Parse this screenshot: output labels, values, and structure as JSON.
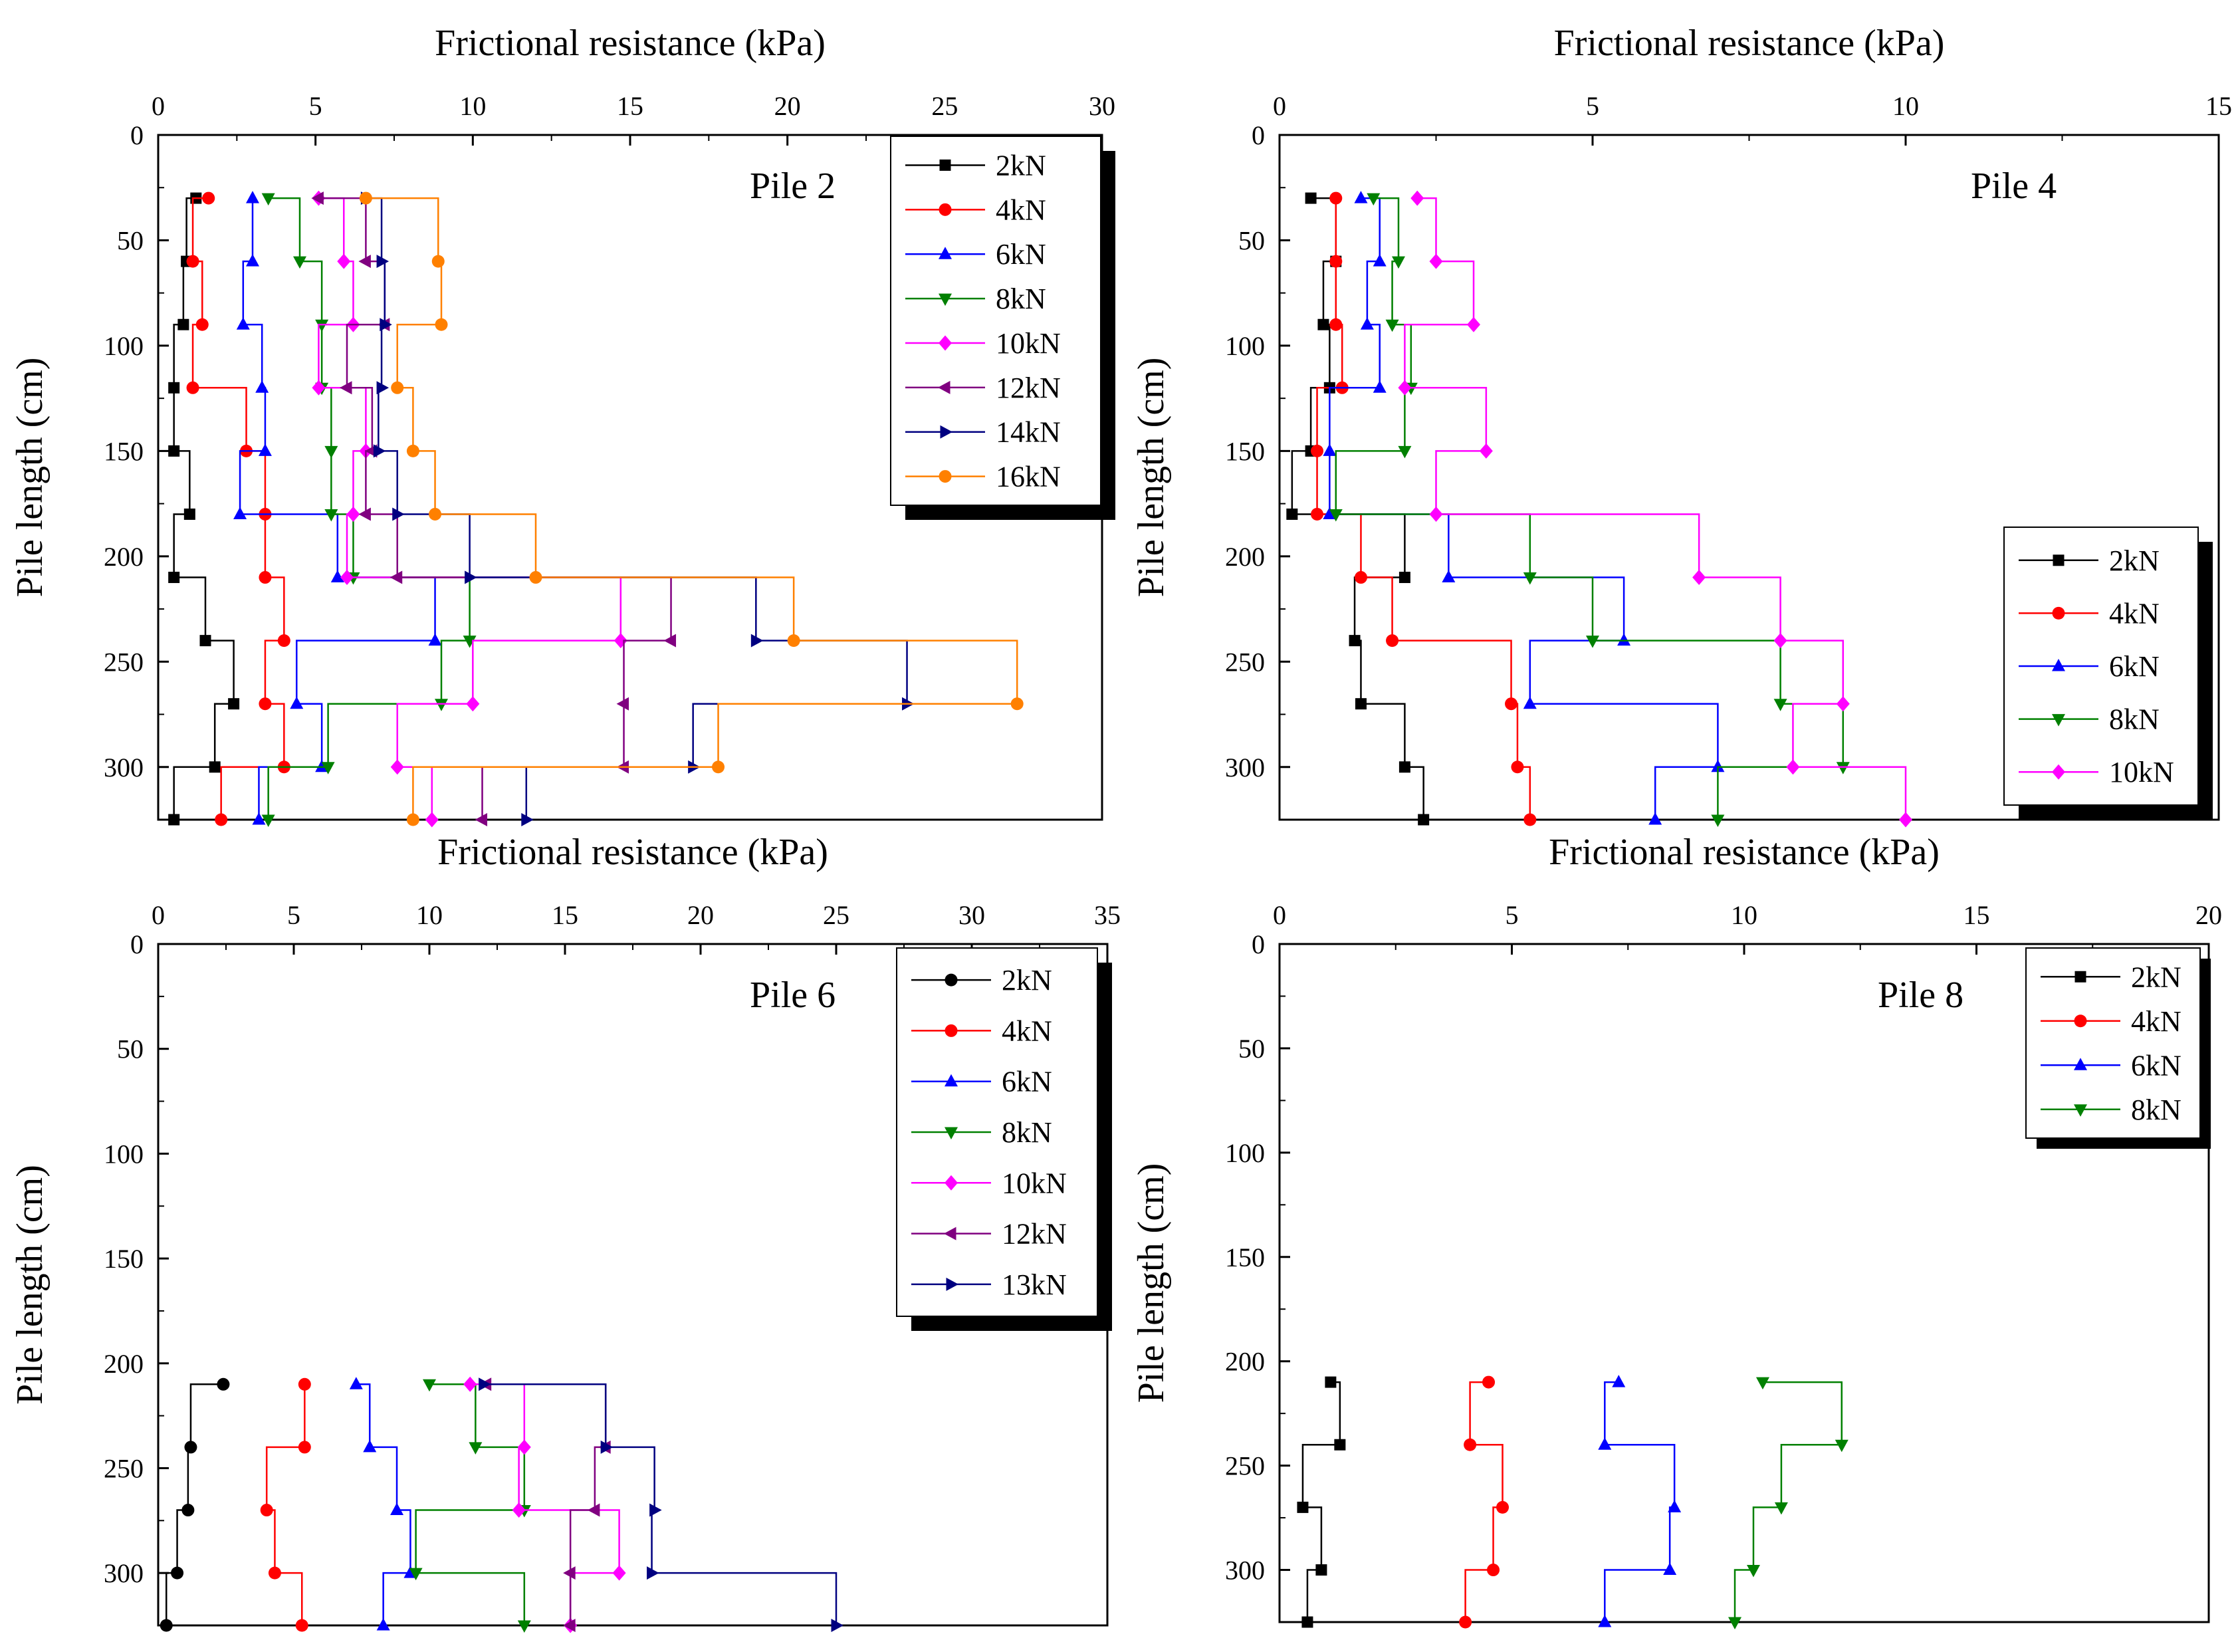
{
  "chart_data": [
    {
      "type": "line",
      "label": "Pile 2",
      "xlabel": "Frictional resistance (kPa)",
      "ylabel": "Pile length (cm)",
      "xlim": [
        0,
        30
      ],
      "ylim": [
        0,
        325
      ],
      "y_inverted": true,
      "x_axis_position": "top",
      "x_ticks": [
        "0",
        "5",
        "10",
        "15",
        "20",
        "25",
        "30"
      ],
      "y_ticks": [
        "0",
        "50",
        "100",
        "150",
        "200",
        "250",
        "300"
      ],
      "legend_position": "top-right",
      "step": "horizontal-first",
      "grid": false,
      "depths": [
        30,
        60,
        90,
        120,
        150,
        180,
        210,
        240,
        270,
        300,
        325
      ],
      "series": [
        {
          "name": "2kN",
          "color": "#000000",
          "marker": "square",
          "values": [
            1.2,
            0.9,
            0.8,
            0.5,
            0.5,
            1.0,
            0.5,
            1.5,
            2.4,
            1.8,
            0.5
          ]
        },
        {
          "name": "4kN",
          "color": "#ff0000",
          "marker": "circle",
          "values": [
            1.6,
            1.1,
            1.4,
            1.1,
            2.8,
            3.4,
            3.4,
            4.0,
            3.4,
            4.0,
            2.0
          ]
        },
        {
          "name": "6kN",
          "color": "#0000ff",
          "marker": "triangle-up",
          "values": [
            3.0,
            3.0,
            2.7,
            3.3,
            3.4,
            2.6,
            5.7,
            8.8,
            4.4,
            5.2,
            3.2
          ]
        },
        {
          "name": "8kN",
          "color": "#008000",
          "marker": "triangle-down",
          "values": [
            3.5,
            4.5,
            5.2,
            5.2,
            5.5,
            5.5,
            6.2,
            9.9,
            9.0,
            5.4,
            3.5
          ]
        },
        {
          "name": "10kN",
          "color": "#ff00ff",
          "marker": "diamond",
          "values": [
            5.1,
            5.9,
            6.2,
            5.1,
            6.6,
            6.2,
            6.0,
            14.7,
            10.0,
            7.6,
            8.7
          ]
        },
        {
          "name": "12kN",
          "color": "#800080",
          "marker": "triangle-left",
          "values": [
            5.1,
            6.6,
            7.2,
            6.0,
            6.8,
            6.6,
            7.6,
            16.3,
            14.8,
            14.8,
            10.3
          ]
        },
        {
          "name": "14kN",
          "color": "#000080",
          "marker": "triangle-right",
          "values": [
            6.6,
            7.1,
            7.2,
            7.1,
            7.0,
            7.6,
            9.9,
            19.0,
            23.8,
            17.0,
            11.7
          ]
        },
        {
          "name": "16kN",
          "color": "#ff8000",
          "marker": "circle",
          "values": [
            6.6,
            8.9,
            9.0,
            7.6,
            8.1,
            8.8,
            12.0,
            20.2,
            27.3,
            17.8,
            8.1
          ]
        }
      ]
    },
    {
      "type": "line",
      "label": "Pile 4",
      "xlabel": "Frictional resistance (kPa)",
      "ylabel": "Pile length (cm)",
      "xlim": [
        0,
        15
      ],
      "ylim": [
        0,
        325
      ],
      "y_inverted": true,
      "x_axis_position": "top",
      "x_ticks": [
        "0",
        "5",
        "10",
        "15"
      ],
      "y_ticks": [
        "0",
        "50",
        "100",
        "150",
        "200",
        "250",
        "300"
      ],
      "legend_position": "right",
      "step": "horizontal-first",
      "grid": false,
      "depths": [
        30,
        60,
        90,
        120,
        150,
        180,
        210,
        240,
        270,
        300,
        325
      ],
      "series": [
        {
          "name": "2kN",
          "color": "#000000",
          "marker": "square",
          "values": [
            0.5,
            0.9,
            0.7,
            0.8,
            0.5,
            0.2,
            2.0,
            1.2,
            1.3,
            2.0,
            2.3
          ]
        },
        {
          "name": "4kN",
          "color": "#ff0000",
          "marker": "circle",
          "values": [
            0.9,
            0.9,
            0.9,
            1.0,
            0.6,
            0.6,
            1.3,
            1.8,
            3.7,
            3.8,
            4.0
          ]
        },
        {
          "name": "6kN",
          "color": "#0000ff",
          "marker": "triangle-up",
          "values": [
            1.3,
            1.6,
            1.4,
            1.6,
            0.8,
            0.8,
            2.7,
            5.5,
            4.0,
            7.0,
            6.0
          ]
        },
        {
          "name": "8kN",
          "color": "#008000",
          "marker": "triangle-down",
          "values": [
            1.5,
            1.9,
            1.8,
            2.1,
            2.0,
            0.9,
            4.0,
            5.0,
            8.0,
            9.0,
            7.0
          ]
        },
        {
          "name": "10kN",
          "color": "#ff00ff",
          "marker": "diamond",
          "values": [
            2.2,
            2.5,
            3.1,
            2.0,
            3.3,
            2.5,
            6.7,
            8.0,
            9.0,
            8.2,
            10.0
          ]
        }
      ]
    },
    {
      "type": "line",
      "label": "Pile 6",
      "xlabel": "Frictional resistance (kPa)",
      "ylabel": "Pile length (cm)",
      "xlim": [
        0,
        35
      ],
      "ylim": [
        0,
        325
      ],
      "y_inverted": true,
      "x_axis_position": "top",
      "x_ticks": [
        "0",
        "5",
        "10",
        "15",
        "20",
        "25",
        "30",
        "35"
      ],
      "y_ticks": [
        "0",
        "50",
        "100",
        "150",
        "200",
        "250",
        "300"
      ],
      "legend_position": "top-right",
      "step": "horizontal-first",
      "grid": false,
      "depths": [
        210,
        240,
        270,
        300,
        325
      ],
      "series": [
        {
          "name": "2kN",
          "color": "#000000",
          "marker": "circle",
          "values": [
            2.4,
            1.2,
            1.1,
            0.7,
            0.3
          ]
        },
        {
          "name": "4kN",
          "color": "#ff0000",
          "marker": "circle",
          "values": [
            5.4,
            5.4,
            4.0,
            4.3,
            5.3
          ]
        },
        {
          "name": "6kN",
          "color": "#0000ff",
          "marker": "triangle-up",
          "values": [
            7.3,
            7.8,
            8.8,
            9.3,
            8.3
          ]
        },
        {
          "name": "8kN",
          "color": "#008000",
          "marker": "triangle-down",
          "values": [
            10.0,
            11.7,
            13.5,
            9.5,
            13.5
          ]
        },
        {
          "name": "10kN",
          "color": "#ff00ff",
          "marker": "diamond",
          "values": [
            11.5,
            13.5,
            13.3,
            17.0,
            15.2
          ]
        },
        {
          "name": "12kN",
          "color": "#800080",
          "marker": "triangle-left",
          "values": [
            12.1,
            16.5,
            16.1,
            15.2,
            15.2
          ]
        },
        {
          "name": "13kN",
          "color": "#000080",
          "marker": "triangle-right",
          "values": [
            12.0,
            16.5,
            18.3,
            18.2,
            25.0
          ]
        }
      ]
    },
    {
      "type": "line",
      "label": "Pile 8",
      "xlabel": "Frictional resistance (kPa)",
      "ylabel": "Pile length (cm)",
      "xlim": [
        0,
        20
      ],
      "ylim": [
        0,
        325
      ],
      "y_inverted": true,
      "x_axis_position": "top",
      "x_ticks": [
        "0",
        "5",
        "10",
        "15",
        "20"
      ],
      "y_ticks": [
        "0",
        "50",
        "100",
        "150",
        "200",
        "250",
        "300"
      ],
      "legend_position": "top-right",
      "step": "horizontal-first",
      "grid": false,
      "depths": [
        210,
        240,
        270,
        300,
        325
      ],
      "series": [
        {
          "name": "2kN",
          "color": "#000000",
          "marker": "square",
          "values": [
            1.1,
            1.3,
            0.5,
            0.9,
            0.6
          ]
        },
        {
          "name": "4kN",
          "color": "#ff0000",
          "marker": "circle",
          "values": [
            4.5,
            4.1,
            4.8,
            4.6,
            4.0
          ]
        },
        {
          "name": "6kN",
          "color": "#0000ff",
          "marker": "triangle-up",
          "values": [
            7.3,
            7.0,
            8.5,
            8.4,
            7.0
          ]
        },
        {
          "name": "8kN",
          "color": "#008000",
          "marker": "triangle-down",
          "values": [
            10.4,
            12.1,
            10.8,
            10.2,
            9.8
          ]
        }
      ]
    }
  ]
}
